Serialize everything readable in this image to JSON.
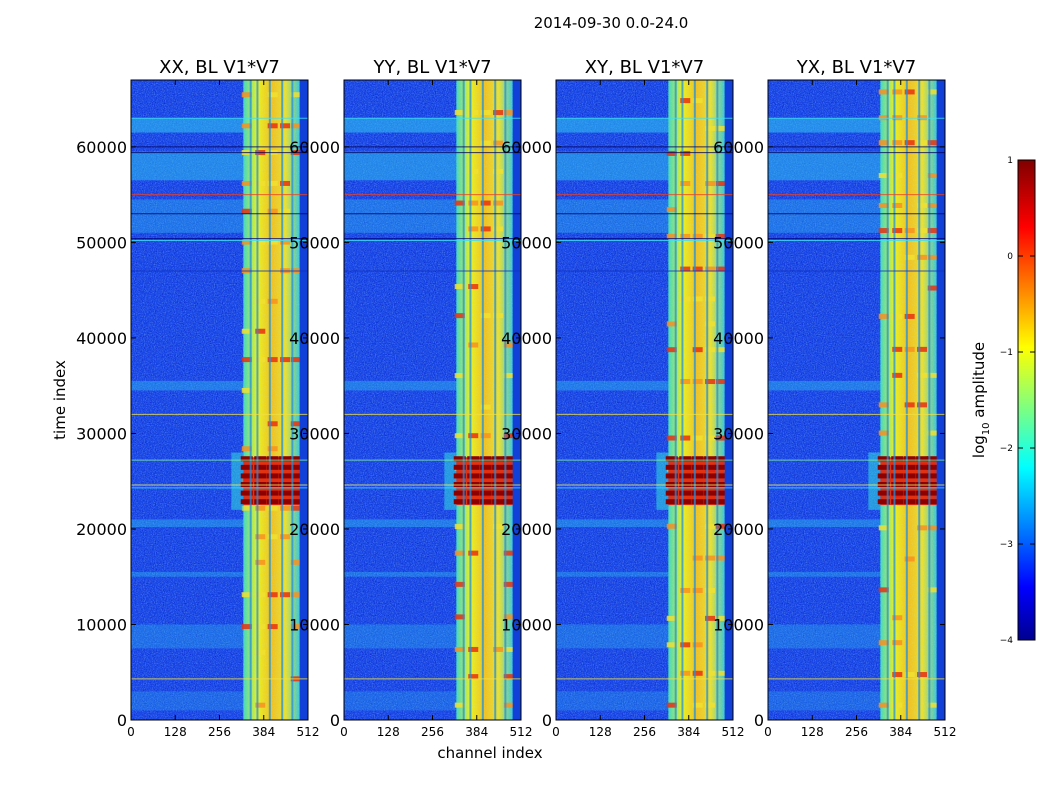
{
  "figure": {
    "suptitle": "2014-09-30 0.0-24.0",
    "xlabel": "channel index",
    "ylabel": "time index"
  },
  "colorbar": {
    "label_prefix": "log",
    "label_sub": "10",
    "label_suffix": " amplitude",
    "ticks": [
      "1",
      "0",
      "−1",
      "−2",
      "−3",
      "−4"
    ],
    "colormap": [
      "#00008f",
      "#0000ff",
      "#00ffff",
      "#ffff00",
      "#ff0000",
      "#800000"
    ]
  },
  "chart_data": [
    {
      "type": "heatmap",
      "title": "XX, BL V1*V7",
      "xlabel": "channel index",
      "ylabel": "time index",
      "x_ticks": [
        "0",
        "128",
        "256",
        "384",
        "512"
      ],
      "y_ticks": [
        "0",
        "10000",
        "20000",
        "30000",
        "40000",
        "50000",
        "60000"
      ],
      "xlim": [
        0,
        512
      ],
      "ylim": [
        0,
        67000
      ],
      "clim": [
        -4,
        1
      ],
      "band_channels": [
        325,
        512
      ],
      "peak_time_range": [
        22000,
        28000
      ]
    },
    {
      "type": "heatmap",
      "title": "YY, BL V1*V7",
      "x_ticks": [
        "0",
        "128",
        "256",
        "384",
        "512"
      ],
      "y_ticks": [
        "0",
        "10000",
        "20000",
        "30000",
        "40000",
        "50000",
        "60000"
      ],
      "xlim": [
        0,
        512
      ],
      "ylim": [
        0,
        67000
      ],
      "clim": [
        -4,
        1
      ],
      "band_channels": [
        325,
        512
      ],
      "peak_time_range": [
        22000,
        28000
      ]
    },
    {
      "type": "heatmap",
      "title": "XY, BL V1*V7",
      "x_ticks": [
        "0",
        "128",
        "256",
        "384",
        "512"
      ],
      "y_ticks": [
        "0",
        "10000",
        "20000",
        "30000",
        "40000",
        "50000",
        "60000"
      ],
      "xlim": [
        0,
        512
      ],
      "ylim": [
        0,
        67000
      ],
      "clim": [
        -4,
        1
      ],
      "band_channels": [
        325,
        512
      ],
      "peak_time_range": [
        22000,
        28000
      ]
    },
    {
      "type": "heatmap",
      "title": "YX, BL V1*V7",
      "x_ticks": [
        "0",
        "128",
        "256",
        "384",
        "512"
      ],
      "y_ticks": [
        "0",
        "10000",
        "20000",
        "30000",
        "40000",
        "50000",
        "60000"
      ],
      "xlim": [
        0,
        512
      ],
      "ylim": [
        0,
        67000
      ],
      "clim": [
        -4,
        1
      ],
      "band_channels": [
        325,
        512
      ],
      "peak_time_range": [
        22000,
        28000
      ]
    }
  ]
}
